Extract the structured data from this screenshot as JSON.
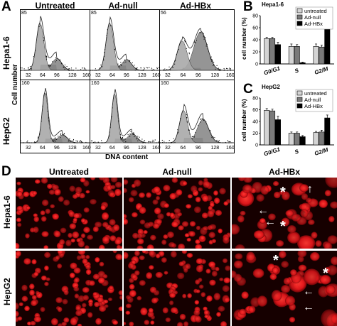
{
  "panel_labels": {
    "a": "A",
    "b": "B",
    "c": "C",
    "d": "D"
  },
  "panel_a": {
    "columns": [
      "Untreated",
      "Ad-null",
      "Ad-HBx"
    ],
    "rows": [
      "Hepa1-6",
      "HepG2"
    ],
    "ylabel": "Cell number",
    "xlabel": "DNA content",
    "y_max_labels": [
      [
        "85",
        "85",
        "56"
      ],
      [
        "160",
        "160",
        "160"
      ]
    ],
    "x_ticks": [
      "32",
      "64",
      "96",
      "128",
      "160"
    ]
  },
  "chart_data": [
    {
      "type": "bar",
      "title": "Hepa1-6",
      "ylabel": "cell number (%)",
      "xlabel": "",
      "categories": [
        "G0/G1",
        "S",
        "G2/M"
      ],
      "ylim": [
        0,
        80
      ],
      "yticks": [
        "0",
        "20",
        "40",
        "60",
        "80"
      ],
      "legend_position": "top-right",
      "series": [
        {
          "name": "untreated",
          "values": [
            42,
            29,
            29
          ],
          "errors": [
            2,
            4,
            4
          ],
          "color": "#d4d4d4"
        },
        {
          "name": "Ad-null",
          "values": [
            42,
            29,
            28
          ],
          "errors": [
            2,
            3,
            3
          ],
          "color": "#7a7a7a"
        },
        {
          "name": "Ad-HBx",
          "values": [
            32,
            2,
            66
          ],
          "errors": [
            4,
            1,
            4
          ],
          "color": "#000000"
        }
      ]
    },
    {
      "type": "bar",
      "title": "HepG2",
      "ylabel": "cell number (%)",
      "xlabel": "",
      "categories": [
        "G0/G1",
        "S",
        "G2/M"
      ],
      "ylim": [
        0,
        80
      ],
      "yticks": [
        "0",
        "20",
        "40",
        "60",
        "80"
      ],
      "legend_position": "top-right",
      "series": [
        {
          "name": "untreated",
          "values": [
            59,
            20,
            21
          ],
          "errors": [
            3,
            2,
            2
          ],
          "color": "#d4d4d4"
        },
        {
          "name": "Ad-null",
          "values": [
            58,
            20,
            22
          ],
          "errors": [
            3,
            2,
            3
          ],
          "color": "#7a7a7a"
        },
        {
          "name": "Ad-HBx",
          "values": [
            43,
            14,
            46
          ],
          "errors": [
            6,
            2,
            5
          ],
          "color": "#000000"
        }
      ]
    }
  ],
  "panel_d": {
    "columns": [
      "Untreated",
      "Ad-null",
      "Ad-HBx"
    ],
    "rows": [
      "Hepa1-6",
      "HepG2"
    ],
    "annotations": {
      "star": "*",
      "arrow_left": "←",
      "arrow_up": "↑"
    },
    "nucleus_color": "#e0151a"
  }
}
